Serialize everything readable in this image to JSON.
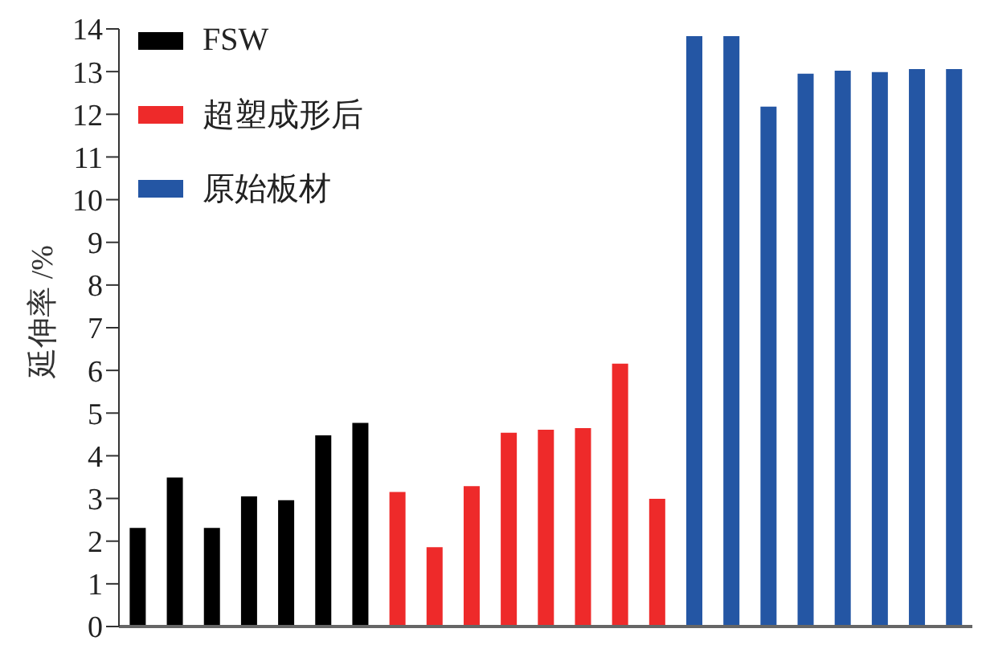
{
  "chart_data": {
    "type": "bar",
    "ylabel": "延伸率 /%",
    "categories": [
      null,
      null,
      null,
      null,
      null,
      null,
      null,
      null,
      null,
      null,
      null,
      null,
      null,
      null,
      null,
      null,
      null,
      null,
      null,
      null,
      null,
      null,
      null
    ],
    "series": [
      {
        "name": "FSW",
        "color": "#000000",
        "values": [
          2.31,
          3.49,
          2.31,
          3.05,
          2.96,
          4.48,
          4.77,
          null,
          null,
          null,
          null,
          null,
          null,
          null,
          null,
          null,
          null,
          null,
          null,
          null,
          null,
          null,
          null
        ]
      },
      {
        "name": "超塑成形后",
        "color": "#ee2a2a",
        "values": [
          null,
          null,
          null,
          null,
          null,
          null,
          null,
          3.15,
          1.86,
          3.29,
          4.54,
          4.61,
          4.65,
          6.16,
          2.99,
          null,
          null,
          null,
          null,
          null,
          null,
          null,
          null
        ]
      },
      {
        "name": "原始板材",
        "color": "#2456a4",
        "values": [
          null,
          null,
          null,
          null,
          null,
          null,
          null,
          null,
          null,
          null,
          null,
          null,
          null,
          null,
          null,
          13.83,
          13.83,
          12.18,
          12.95,
          13.02,
          12.99,
          13.06,
          13.06
        ]
      }
    ],
    "ylim": [
      0,
      14
    ],
    "yticks": [
      0,
      1,
      2,
      3,
      4,
      5,
      6,
      7,
      8,
      9,
      10,
      11,
      12,
      13,
      14
    ],
    "grid": false,
    "legend": "top left",
    "tick_labels": "y"
  }
}
